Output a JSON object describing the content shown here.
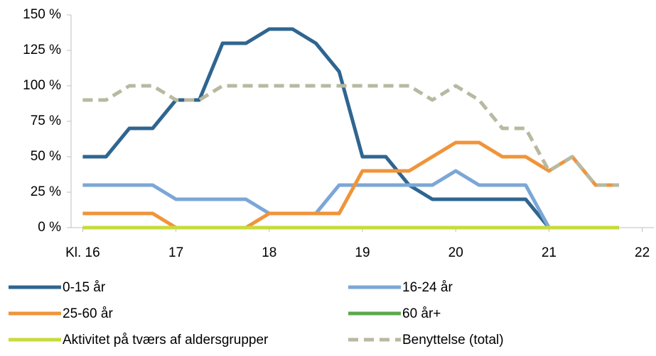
{
  "chart_data": {
    "type": "line",
    "x": [
      16,
      16.25,
      16.5,
      16.75,
      17,
      17.25,
      17.5,
      17.75,
      18,
      18.25,
      18.5,
      18.75,
      19,
      19.25,
      19.5,
      19.75,
      20,
      20.25,
      20.5,
      20.75,
      21,
      21.25,
      21.5,
      21.75
    ],
    "xlim": [
      15.875,
      22.125
    ],
    "xticks": [
      {
        "value": 16,
        "label": "Kl. 16"
      },
      17,
      18,
      19,
      20,
      21,
      22
    ],
    "ylim": [
      0,
      150
    ],
    "yticks": [
      {
        "value": 0,
        "label": "0 %"
      },
      {
        "value": 25,
        "label": "25 %"
      },
      {
        "value": 50,
        "label": "50 %"
      },
      {
        "value": 75,
        "label": "75 %"
      },
      {
        "value": 100,
        "label": "100 %"
      },
      {
        "value": 125,
        "label": "125 %"
      },
      {
        "value": 150,
        "label": "150 %"
      }
    ],
    "series": [
      {
        "name": "0-15 år",
        "color": "#2f6590",
        "values": [
          50,
          50,
          70,
          70,
          90,
          90,
          130,
          130,
          140,
          140,
          130,
          110,
          50,
          50,
          30,
          20,
          20,
          20,
          20,
          20,
          0,
          0,
          0,
          0
        ]
      },
      {
        "name": "16-24 år",
        "color": "#7ba7d7",
        "values": [
          30,
          30,
          30,
          30,
          20,
          20,
          20,
          20,
          10,
          10,
          10,
          30,
          30,
          30,
          30,
          30,
          40,
          30,
          30,
          30,
          0,
          0,
          0,
          0
        ]
      },
      {
        "name": "25-60 år",
        "color": "#f0943a",
        "values": [
          10,
          10,
          10,
          10,
          0,
          0,
          0,
          0,
          10,
          10,
          10,
          10,
          40,
          40,
          40,
          50,
          60,
          60,
          50,
          50,
          40,
          50,
          30,
          30
        ]
      },
      {
        "name": "60 år+",
        "color": "#5ca84a",
        "values": [
          0,
          0,
          0,
          0,
          0,
          0,
          0,
          0,
          0,
          0,
          0,
          0,
          0,
          0,
          0,
          0,
          0,
          0,
          0,
          0,
          0,
          0,
          0,
          0
        ]
      },
      {
        "name": "Aktivitet på tværs af aldersgrupper",
        "color": "#c9db3c",
        "values": [
          0,
          0,
          0,
          0,
          0,
          0,
          0,
          0,
          0,
          0,
          0,
          0,
          0,
          0,
          0,
          0,
          0,
          0,
          0,
          0,
          0,
          0,
          0,
          0
        ]
      },
      {
        "name": "Benyttelse (total)",
        "color": "#b8b9a0",
        "dashed": true,
        "values": [
          90,
          90,
          100,
          100,
          90,
          90,
          100,
          100,
          100,
          100,
          100,
          100,
          100,
          100,
          100,
          90,
          100,
          90,
          70,
          70,
          40,
          50,
          30,
          30
        ]
      }
    ]
  }
}
